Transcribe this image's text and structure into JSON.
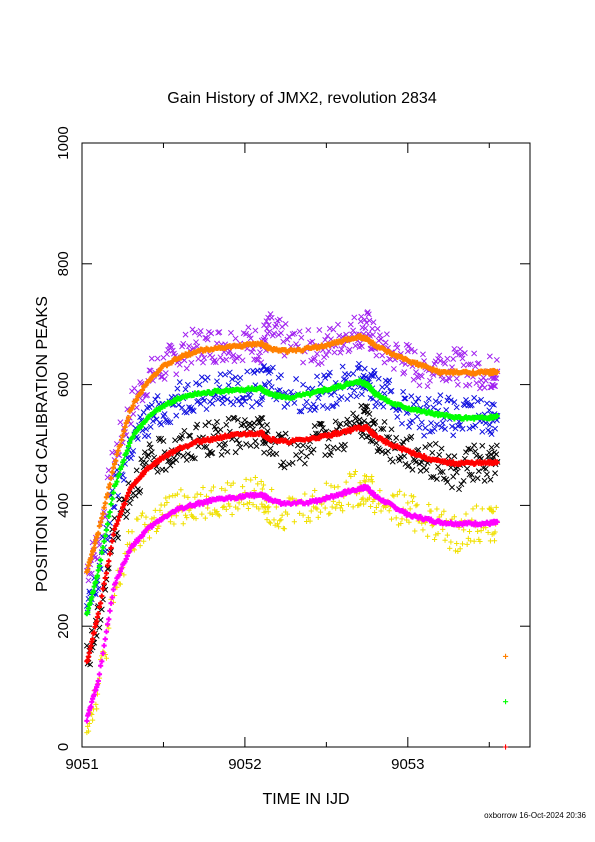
{
  "chart_data": {
    "type": "scatter",
    "title": "Gain History of JMX2, revolution 2834",
    "xlabel": "TIME IN IJD",
    "ylabel": "POSITION OF Cd CALIBRATION PEAKS",
    "xlim": [
      9051,
      9053.75
    ],
    "ylim": [
      0,
      1000
    ],
    "xticks": [
      {
        "value": 9051,
        "label": "9051"
      },
      {
        "value": 9052,
        "label": "9052"
      },
      {
        "value": 9053,
        "label": "9053"
      }
    ],
    "xminor": [
      9051.5,
      9052.5,
      9053.5
    ],
    "yticks": [
      {
        "value": 0,
        "label": "0"
      },
      {
        "value": 200,
        "label": "200"
      },
      {
        "value": 400,
        "label": "400"
      },
      {
        "value": 600,
        "label": "600"
      },
      {
        "value": 800,
        "label": "800"
      },
      {
        "value": 1000,
        "label": "1000"
      }
    ],
    "grid": false,
    "series": [
      {
        "color": "#a020f0",
        "marker": "x",
        "x": [
          9051.03,
          9051.1,
          9051.2,
          9051.3,
          9051.4,
          9051.5,
          9051.6,
          9051.7,
          9051.8,
          9051.9,
          9052.0,
          9052.1,
          9052.15,
          9052.25,
          9052.4,
          9052.5,
          9052.6,
          9052.7,
          9052.75,
          9052.8,
          9052.9,
          9053.0,
          9053.1,
          9053.2,
          9053.3,
          9053.4,
          9053.5,
          9053.55
        ],
        "y": [
          292,
          340,
          480,
          560,
          610,
          630,
          650,
          665,
          665,
          668,
          670,
          665,
          690,
          672,
          660,
          665,
          680,
          690,
          695,
          670,
          650,
          640,
          620,
          640,
          630,
          625,
          620,
          622
        ]
      },
      {
        "color": "#1010e0",
        "marker": "x",
        "x": [
          9051.03,
          9051.1,
          9051.2,
          9051.3,
          9051.4,
          9051.5,
          9051.6,
          9051.7,
          9051.8,
          9051.9,
          9052.0,
          9052.1,
          9052.15,
          9052.25,
          9052.4,
          9052.5,
          9052.6,
          9052.7,
          9052.75,
          9052.8,
          9052.9,
          9053.0,
          9053.1,
          9053.2,
          9053.3,
          9053.4,
          9053.5,
          9053.55
        ],
        "y": [
          220,
          280,
          420,
          500,
          540,
          560,
          575,
          588,
          590,
          593,
          592,
          595,
          615,
          588,
          580,
          590,
          600,
          608,
          612,
          590,
          575,
          560,
          545,
          560,
          540,
          550,
          548,
          548
        ]
      },
      {
        "color": "#000000",
        "marker": "x",
        "x": [
          9051.03,
          9051.1,
          9051.2,
          9051.3,
          9051.4,
          9051.5,
          9051.6,
          9051.7,
          9051.8,
          9051.9,
          9052.0,
          9052.1,
          9052.15,
          9052.25,
          9052.4,
          9052.5,
          9052.6,
          9052.7,
          9052.75,
          9052.8,
          9052.9,
          9053.0,
          9053.1,
          9053.2,
          9053.3,
          9053.4,
          9053.5,
          9053.55
        ],
        "y": [
          140,
          210,
          360,
          430,
          470,
          485,
          495,
          505,
          510,
          515,
          518,
          520,
          505,
          490,
          500,
          510,
          520,
          535,
          540,
          520,
          500,
          490,
          480,
          470,
          450,
          470,
          470,
          472
        ]
      },
      {
        "color": "#f0e000",
        "marker": "+",
        "x": [
          9051.03,
          9051.1,
          9051.2,
          9051.3,
          9051.4,
          9051.5,
          9051.6,
          9051.7,
          9051.8,
          9051.9,
          9052.0,
          9052.1,
          9052.15,
          9052.25,
          9052.4,
          9052.5,
          9052.6,
          9052.7,
          9052.75,
          9052.8,
          9052.9,
          9053.0,
          9053.1,
          9053.2,
          9053.3,
          9053.4,
          9053.5,
          9053.55
        ],
        "y": [
          42,
          100,
          250,
          340,
          365,
          385,
          398,
          405,
          410,
          412,
          415,
          418,
          400,
          390,
          400,
          410,
          420,
          428,
          432,
          410,
          400,
          390,
          380,
          365,
          350,
          370,
          370,
          372
        ]
      },
      {
        "color": "#ff8000",
        "marker": "+",
        "x": [
          9051.03,
          9051.1,
          9051.2,
          9051.3,
          9051.4,
          9051.5,
          9051.6,
          9051.7,
          9051.8,
          9051.9,
          9052.0,
          9052.1,
          9052.15,
          9052.25,
          9052.4,
          9052.5,
          9052.6,
          9052.7,
          9052.75,
          9052.8,
          9052.9,
          9053.0,
          9053.1,
          9053.2,
          9053.3,
          9053.4,
          9053.5,
          9053.55
        ],
        "y": [
          290,
          355,
          470,
          560,
          605,
          630,
          645,
          655,
          660,
          662,
          665,
          668,
          660,
          655,
          660,
          665,
          672,
          680,
          675,
          665,
          650,
          640,
          630,
          620,
          620,
          620,
          620,
          622
        ]
      },
      {
        "color": "#00ff00",
        "marker": "+",
        "x": [
          9051.03,
          9051.1,
          9051.2,
          9051.3,
          9051.4,
          9051.5,
          9051.6,
          9051.7,
          9051.8,
          9051.9,
          9052.0,
          9052.1,
          9052.15,
          9052.25,
          9052.4,
          9052.5,
          9052.6,
          9052.7,
          9052.75,
          9052.8,
          9052.9,
          9053.0,
          9053.1,
          9053.2,
          9053.3,
          9053.4,
          9053.5,
          9053.55
        ],
        "y": [
          220,
          290,
          430,
          510,
          545,
          565,
          578,
          585,
          588,
          590,
          592,
          593,
          585,
          578,
          585,
          592,
          598,
          605,
          600,
          585,
          570,
          562,
          555,
          550,
          545,
          545,
          545,
          548
        ]
      },
      {
        "color": "#ff0000",
        "marker": "+",
        "x": [
          9051.03,
          9051.1,
          9051.2,
          9051.3,
          9051.4,
          9051.5,
          9051.6,
          9051.7,
          9051.8,
          9051.9,
          9052.0,
          9052.1,
          9052.15,
          9052.25,
          9052.4,
          9052.5,
          9052.6,
          9052.7,
          9052.75,
          9052.8,
          9052.9,
          9053.0,
          9053.1,
          9053.2,
          9053.3,
          9053.4,
          9053.5,
          9053.55
        ],
        "y": [
          140,
          220,
          360,
          430,
          460,
          480,
          495,
          505,
          510,
          515,
          518,
          520,
          510,
          505,
          510,
          515,
          522,
          528,
          528,
          515,
          500,
          490,
          480,
          472,
          470,
          470,
          470,
          472
        ]
      },
      {
        "color": "#ff00ff",
        "marker": "+",
        "x": [
          9051.03,
          9051.1,
          9051.2,
          9051.3,
          9051.4,
          9051.5,
          9051.6,
          9051.7,
          9051.8,
          9051.9,
          9052.0,
          9052.1,
          9052.15,
          9052.25,
          9052.4,
          9052.5,
          9052.6,
          9052.7,
          9052.75,
          9052.8,
          9052.9,
          9053.0,
          9053.1,
          9053.2,
          9053.3,
          9053.4,
          9053.5,
          9053.55
        ],
        "y": [
          45,
          110,
          270,
          330,
          360,
          380,
          395,
          402,
          408,
          412,
          415,
          418,
          410,
          402,
          405,
          412,
          420,
          428,
          430,
          415,
          400,
          385,
          378,
          372,
          370,
          370,
          370,
          372
        ]
      }
    ],
    "outliers": [
      {
        "color": "#ff8000",
        "marker": "+",
        "x": 9053.6,
        "y": 150
      },
      {
        "color": "#00ff00",
        "marker": "+",
        "x": 9053.6,
        "y": 75
      },
      {
        "color": "#ff0000",
        "marker": "+",
        "x": 9053.6,
        "y": 0
      }
    ]
  },
  "footer": "oxborrow 16-Oct-2024 20:36"
}
